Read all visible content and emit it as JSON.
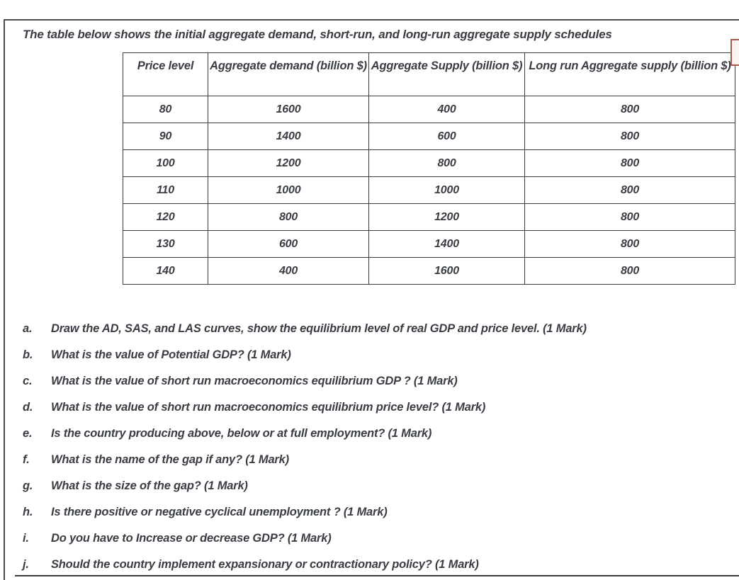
{
  "document": {
    "title": "The table below shows the initial aggregate demand, short-run, and long-run aggregate supply schedules",
    "table": {
      "headers": [
        "Price level",
        "Aggregate demand (billion $)",
        "Aggregate Supply (billion $)",
        "Long run Aggregate supply (billion $)"
      ],
      "rows": [
        [
          "80",
          "1600",
          "400",
          "800"
        ],
        [
          "90",
          "1400",
          "600",
          "800"
        ],
        [
          "100",
          "1200",
          "800",
          "800"
        ],
        [
          "110",
          "1000",
          "1000",
          "800"
        ],
        [
          "120",
          "800",
          "1200",
          "800"
        ],
        [
          "130",
          "600",
          "1400",
          "800"
        ],
        [
          "140",
          "400",
          "1600",
          "800"
        ]
      ]
    },
    "questions": [
      {
        "label": "a.",
        "text": "Draw the AD, SAS, and LAS curves, show the equilibrium level of real GDP and price level. (1 Mark)"
      },
      {
        "label": "b.",
        "text": "What is the value of Potential GDP? (1 Mark)"
      },
      {
        "label": "c.",
        "text": "What is the value of short run macroeconomics equilibrium GDP ? (1 Mark)"
      },
      {
        "label": "d.",
        "text": "What is the value of short run macroeconomics equilibrium price level? (1 Mark)"
      },
      {
        "label": "e.",
        "text": "Is the country producing above, below or at full employment? (1 Mark)"
      },
      {
        "label": "f.",
        "text": "What is the name of the gap if any? (1 Mark)"
      },
      {
        "label": "g.",
        "text": "What is the size of the gap? (1 Mark)"
      },
      {
        "label": "h.",
        "text": "Is there positive or negative cyclical unemployment ? (1 Mark)"
      },
      {
        "label": "i.",
        "text": "Do you have to Increase or decrease GDP? (1 Mark)"
      },
      {
        "label": "j.",
        "text": "Should the country implement  expansionary or contractionary policy? (1 Mark)"
      }
    ],
    "colors": {
      "text": "#3a3d43",
      "table_border": "#3c3c3c",
      "page_border": "#4d4d4d",
      "annotation_border": "#ad584d",
      "annotation_fill": "#fdf4f2"
    }
  }
}
